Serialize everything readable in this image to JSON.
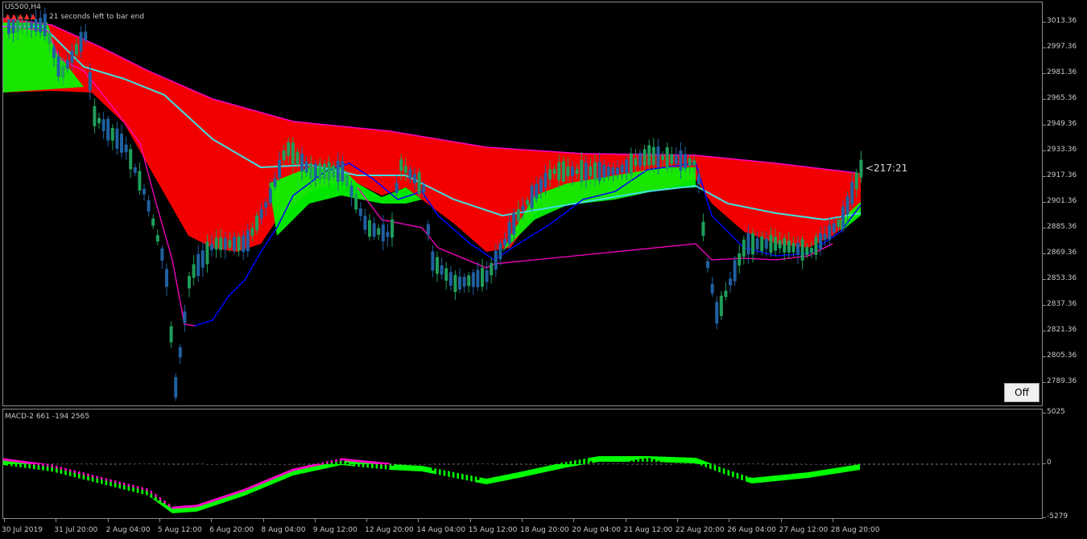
{
  "chart": {
    "symbol": "US500,H4",
    "timer_prefix": "▲▲▲▲▲",
    "timer_text": "21 seconds left to bar end",
    "price_marker": "<217:21",
    "off_label": "Off"
  },
  "macd": {
    "title": "MACD-2 661 -194 2565"
  },
  "price_axis": [
    "3013.36",
    "2997.36",
    "2981.36",
    "2965.36",
    "2949.36",
    "2933.36",
    "2917.36",
    "2901.36",
    "2885.36",
    "2869.36",
    "2853.36",
    "2837.36",
    "2821.36",
    "2805.36",
    "2789.36"
  ],
  "macd_axis": [
    "5025",
    "0",
    "-5279"
  ],
  "time_axis": [
    "30 Jul 2019",
    "31 Jul 20:00",
    "2 Aug 04:00",
    "5 Aug 12:00",
    "6 Aug 20:00",
    "8 Aug 04:00",
    "9 Aug 12:00",
    "12 Aug 20:00",
    "14 Aug 04:00",
    "15 Aug 12:00",
    "18 Aug 20:00",
    "20 Aug 04:00",
    "21 Aug 12:00",
    "22 Aug 20:00",
    "26 Aug 04:00",
    "27 Aug 12:00",
    "28 Aug 20:00"
  ],
  "colors": {
    "bull_candle": "#1e9e5a",
    "bear_candle": "#2060a0",
    "ribbon_red": "#ff0000",
    "ribbon_green": "#00ff00",
    "ma_cyan": "#40e0e0",
    "ma_magenta": "#ff00c8",
    "ma_blue": "#0000ff",
    "hist_blue": "#0000ff",
    "hist_cyan": "#20a0e0",
    "hist_brown": "#a02020",
    "hist_pink": "#ff80c8"
  }
}
